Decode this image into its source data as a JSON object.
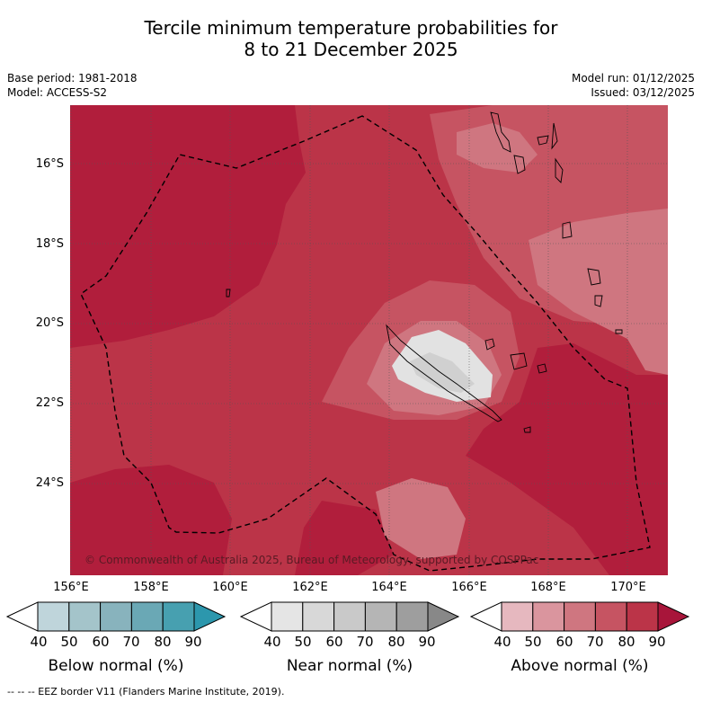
{
  "title": {
    "line1": "Tercile minimum temperature probabilities for",
    "line2": "8 to 21 December 2025"
  },
  "info": {
    "base_period": "Base period: 1981-2018",
    "model": "Model: ACCESS-S2",
    "model_run": "Model run: 01/12/2025",
    "issued": "Issued: 03/12/2025"
  },
  "map": {
    "lat_labels": [
      "16°S",
      "18°S",
      "20°S",
      "22°S",
      "24°S"
    ],
    "lon_labels": [
      "156°E",
      "158°E",
      "160°E",
      "162°E",
      "164°E",
      "166°E",
      "168°E",
      "170°E"
    ],
    "copyright": "© Commonwealth of Australia 2025, Bureau of Meteorology, supported by COSPPac"
  },
  "colorbars": [
    {
      "label": "Below normal (%)",
      "ticks": [
        "40",
        "50",
        "60",
        "70",
        "80",
        "90"
      ],
      "colors": [
        "#bfd5db",
        "#a4c4ca",
        "#88b3bd",
        "#6aa8b5",
        "#47a0b0",
        "#2c97ad"
      ]
    },
    {
      "label": "Near normal (%)",
      "ticks": [
        "40",
        "50",
        "60",
        "70",
        "80",
        "90"
      ],
      "colors": [
        "#e5e5e5",
        "#d8d8d8",
        "#c9c9c9",
        "#b5b5b5",
        "#9e9e9e",
        "#888888"
      ]
    },
    {
      "label": "Above normal (%)",
      "ticks": [
        "40",
        "50",
        "60",
        "70",
        "80",
        "90"
      ],
      "colors": [
        "#e6b8bf",
        "#da959e",
        "#cf7680",
        "#c65462",
        "#bb3448",
        "#a8153a"
      ]
    }
  ],
  "footer": "--  --  -- EEZ border V11 (Flanders Marine Institute, 2019).",
  "palette": {
    "above_60": "#cf7680",
    "above_70": "#c65462",
    "above_80": "#bb3448",
    "above_90": "#b11e3c",
    "near_40": "#e2e2e2",
    "near_50": "#d0d0d0"
  }
}
